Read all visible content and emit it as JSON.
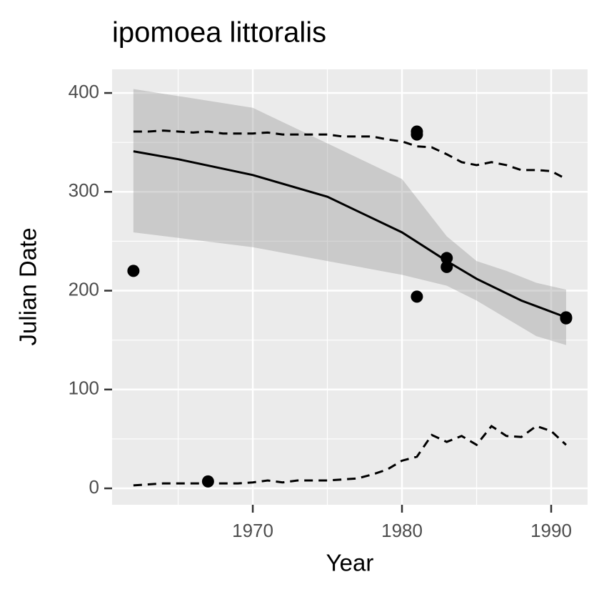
{
  "chart_data": {
    "type": "scatter",
    "title": "ipomoea littoralis",
    "xlabel": "Year",
    "ylabel": "Julian Date",
    "xlim": [
      1960.57,
      1992.44
    ],
    "ylim": [
      -16.6,
      423.9
    ],
    "xticks": [
      1970,
      1980,
      1990
    ],
    "yticks": [
      0,
      100,
      200,
      300,
      400
    ],
    "xticks_minor": [
      1965,
      1975,
      1985
    ],
    "yticks_minor": [
      50,
      150,
      250,
      350
    ],
    "grid": true,
    "points": {
      "color": "#000000",
      "x": [
        1962,
        1967,
        1981,
        1981,
        1981,
        1983,
        1983,
        1991,
        1991
      ],
      "y": [
        220,
        7,
        361,
        358,
        194,
        233,
        224,
        173,
        172
      ]
    },
    "fit": {
      "color": "#000000",
      "x": [
        1962,
        1965,
        1970,
        1975,
        1980,
        1983,
        1985,
        1988,
        1991
      ],
      "y": [
        341,
        333,
        317,
        295,
        259,
        230,
        212,
        190,
        173
      ]
    },
    "band": {
      "color": "#999999",
      "x": [
        1962,
        1970,
        1975,
        1980,
        1983,
        1985,
        1987,
        1989,
        1991
      ],
      "upper": [
        404,
        385,
        349,
        313,
        255,
        230,
        220,
        208,
        201
      ],
      "lower": [
        259,
        244,
        230,
        216,
        205,
        190,
        172,
        154,
        145
      ]
    },
    "quantiles": {
      "color": "#000000",
      "x": [
        1962,
        1963,
        1964,
        1965,
        1966,
        1967,
        1968,
        1969,
        1970,
        1971,
        1972,
        1973,
        1974,
        1975,
        1976,
        1977,
        1978,
        1979,
        1980,
        1981,
        1982,
        1983,
        1984,
        1985,
        1986,
        1987,
        1988,
        1989,
        1990,
        1991
      ],
      "upper": [
        361,
        361,
        362,
        361,
        360,
        361,
        359,
        359,
        359,
        360,
        358,
        358,
        358,
        358,
        356,
        356,
        356,
        353,
        351,
        346,
        345,
        338,
        330,
        327,
        330,
        327,
        322,
        322,
        321,
        313
      ],
      "lower": [
        3,
        4,
        5,
        5,
        5,
        5,
        5,
        5,
        6,
        8,
        6,
        8,
        8,
        8,
        9,
        10,
        14,
        19,
        28,
        32,
        54,
        47,
        53,
        44,
        63,
        53,
        52,
        63,
        58,
        44
      ]
    }
  }
}
